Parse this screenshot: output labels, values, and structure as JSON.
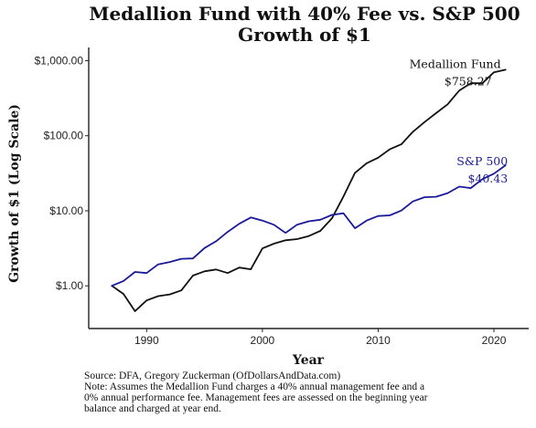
{
  "chart_data": {
    "type": "line",
    "title": "Medallion Fund with 40% Fee vs. S&P 500",
    "subtitle": "Growth of $1",
    "xlabel": "Year",
    "ylabel": "Growth of $1 (Log Scale)",
    "yscale": "log",
    "xlim": [
      1985,
      2023
    ],
    "ylim": [
      0.27,
      1500
    ],
    "x_ticks": [
      1990,
      2000,
      2010,
      2020
    ],
    "y_ticks": [
      {
        "value": 1,
        "label": "$1.00"
      },
      {
        "value": 10,
        "label": "$10.00"
      },
      {
        "value": 100,
        "label": "$100.00"
      },
      {
        "value": 1000,
        "label": "$1,000.00"
      }
    ],
    "grid": false,
    "x": [
      1987,
      1988,
      1989,
      1990,
      1991,
      1992,
      1993,
      1994,
      1995,
      1996,
      1997,
      1998,
      1999,
      2000,
      2001,
      2002,
      2003,
      2004,
      2005,
      2006,
      2007,
      2008,
      2009,
      2010,
      2011,
      2012,
      2013,
      2014,
      2015,
      2016,
      2017,
      2018,
      2019,
      2020,
      2021
    ],
    "series": [
      {
        "name": "Medallion Fund",
        "color": "#111111",
        "end_label": "$758.27",
        "values": [
          1.0,
          0.78,
          0.46,
          0.64,
          0.73,
          0.77,
          0.87,
          1.37,
          1.56,
          1.65,
          1.48,
          1.75,
          1.66,
          3.15,
          3.65,
          4.05,
          4.2,
          4.6,
          5.4,
          7.9,
          15.5,
          32,
          43,
          51,
          66,
          77,
          113,
          152,
          200,
          262,
          400,
          500,
          500,
          700,
          758.27
        ]
      },
      {
        "name": "S&P 500",
        "color": "#1a1a99",
        "end_label": "$40.43",
        "values": [
          1.0,
          1.16,
          1.53,
          1.48,
          1.93,
          2.08,
          2.29,
          2.32,
          3.19,
          3.92,
          5.23,
          6.72,
          8.14,
          7.4,
          6.52,
          5.08,
          6.53,
          7.24,
          7.6,
          8.8,
          9.28,
          5.85,
          7.4,
          8.51,
          8.69,
          10.08,
          13.34,
          15.17,
          15.38,
          17.22,
          20.98,
          20.06,
          26.37,
          31.22,
          40.43
        ]
      }
    ]
  },
  "footer": {
    "source": "Source: DFA, Gregory Zuckerman (OfDollarsAndData.com)",
    "note_lines": [
      "Note: Assumes the Medallion Fund charges a 40% annual management fee and a",
      "0% annual performance fee. Management fees are assessed on the beginning year",
      "balance and charged at year end."
    ]
  }
}
